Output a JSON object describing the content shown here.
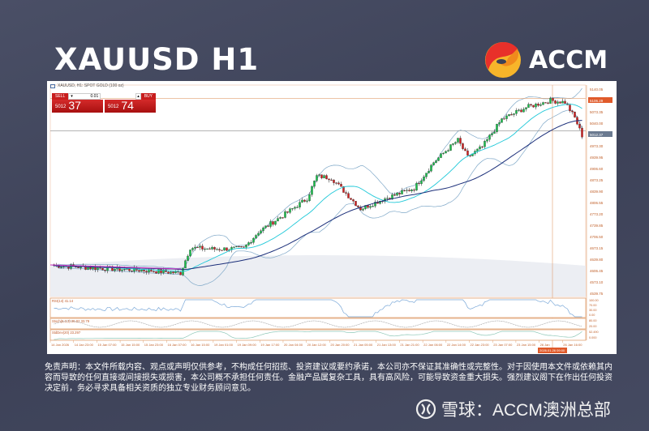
{
  "title": "XAUUSD H1",
  "brand": {
    "name": "ACCM",
    "colors": [
      "#e8302a",
      "#f08a1c",
      "#f7b52a"
    ]
  },
  "platform": {
    "symbol_header": "XAUUSD, H1: SPOT GOLD (100 oz)",
    "sell_label": "SELL",
    "buy_label": "BUY",
    "lot": "0.01",
    "sell_price_small": "5012",
    "sell_price_big": "37",
    "buy_price_small": "5012",
    "buy_price_big": "74"
  },
  "disclaimer": "免责声明：本文件所载内容、观点或声明仅供参考，不构成任何招揽、投资建议或要约承诺，本公司亦不保证其准确性或完整性。对于因使用本文件或依赖其内容而导致的任何直接或间接损失或损害，本公司概不承担任何责任。金融产品属复杂工具，具有高风险，可能导致资金重大损失。强烈建议阁下在作出任何投资决定前，务必寻求具备相关资质的独立专业财务顾问意见。",
  "footer": "雪球：ACCM澳洲总部",
  "chart_data": {
    "type": "candlestick",
    "timeframe": "H1",
    "price_ticks": [
      "5140.05",
      "5106.29",
      "5073.35",
      "5040.00",
      "5012.37",
      "4973.30",
      "4939.95",
      "4906.60",
      "4873.25",
      "4839.90",
      "4806.55",
      "4773.20",
      "4739.85",
      "4706.50",
      "4673.15",
      "4639.80",
      "4606.45",
      "4573.10",
      "4539.75"
    ],
    "highlight_levels": [
      {
        "label": "5106.29",
        "price": 5106.29,
        "color": "#e05a2a"
      },
      {
        "label": "5012.37",
        "price": 5012.37,
        "color": "#6b7a90"
      }
    ],
    "ylim": [
      4530,
      5145
    ],
    "time_ticks": [
      "14 Jan 2026",
      "14 Jan 23:00",
      "15 Jan 07:00",
      "15 Jan 15:00",
      "15 Jan 23:00",
      "16 Jan 07:00",
      "16 Jan 15:00",
      "19 Jan 01:00",
      "19 Jan 09:00",
      "19 Jan 17:00",
      "20 Jan 04:00",
      "20 Jan 12:00",
      "20 Jan 20:00",
      "21 Jan 05:00",
      "21 Jan 13:00",
      "21 Jan 21:00",
      "22 Jan 06:00",
      "22 Jan 14:00",
      "22 Jan 23:00",
      "23 Jan 07:00",
      "23 Jan 15:00",
      "26 Jan",
      "26 Jan 16:00"
    ],
    "crosshair_time": "2026.01.26 09:00",
    "close_path": [
      [
        0,
        4620
      ],
      [
        20,
        4612
      ],
      [
        40,
        4605
      ],
      [
        52,
        4598
      ],
      [
        56,
        4672
      ],
      [
        66,
        4668
      ],
      [
        78,
        4670
      ],
      [
        84,
        4718
      ],
      [
        96,
        4775
      ],
      [
        104,
        4815
      ],
      [
        108,
        4880
      ],
      [
        114,
        4875
      ],
      [
        120,
        4830
      ],
      [
        126,
        4785
      ],
      [
        136,
        4815
      ],
      [
        148,
        4845
      ],
      [
        156,
        4920
      ],
      [
        162,
        4960
      ],
      [
        166,
        4985
      ],
      [
        170,
        4935
      ],
      [
        176,
        4965
      ],
      [
        184,
        5045
      ],
      [
        194,
        5080
      ],
      [
        204,
        5100
      ],
      [
        210,
        5095
      ],
      [
        214,
        5050
      ],
      [
        217,
        4998
      ]
    ],
    "indicators": [
      {
        "name": "RSI(14)",
        "label": "RSI(14) 41.14",
        "ticks": [
          "100.00",
          "70.00",
          "30.00",
          "0.00"
        ]
      },
      {
        "name": "Stoch",
        "label": "Stoch(5,3,3) 25.02 33.79",
        "ticks": [
          "80.00",
          "20.00"
        ]
      },
      {
        "name": "StdDev",
        "label": "StdDev(20) 23.297",
        "ticks": [
          "52.490",
          "0.000"
        ]
      }
    ],
    "overlays": [
      "MA fast (cyan)",
      "MA slow (navy)",
      "Bollinger Bands (light blue)"
    ]
  }
}
